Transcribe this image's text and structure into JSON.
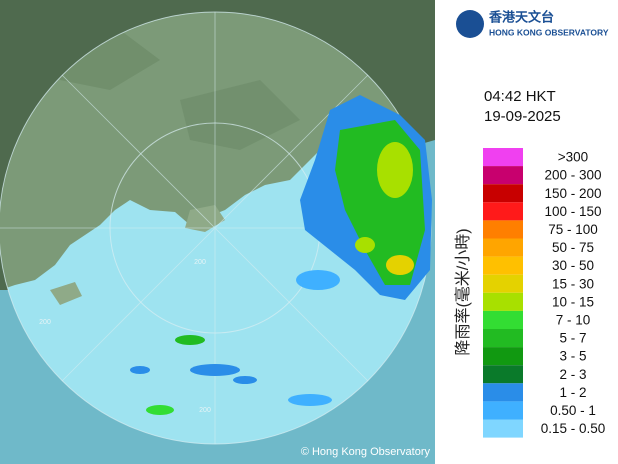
{
  "logo": {
    "chinese": "香港天文台",
    "english": "HONG KONG OBSERVATORY"
  },
  "time": "04:42 HKT",
  "date": "19-09-2025",
  "legend": {
    "title": "降雨率(毫米/小時)",
    "items": [
      {
        "label": ">300",
        "color": "#f040f0"
      },
      {
        "label": "200 - 300",
        "color": "#c8006e"
      },
      {
        "label": "150 - 200",
        "color": "#c80000"
      },
      {
        "label": "100 - 150",
        "color": "#ff1a1a"
      },
      {
        "label": "75 - 100",
        "color": "#ff7f00"
      },
      {
        "label": "50 - 75",
        "color": "#ffa500"
      },
      {
        "label": "30 - 50",
        "color": "#ffc000"
      },
      {
        "label": "15 - 30",
        "color": "#e4d200"
      },
      {
        "label": "10 - 15",
        "color": "#a8e000"
      },
      {
        "label": "7 - 10",
        "color": "#33dd33"
      },
      {
        "label": "5 - 7",
        "color": "#22bb22"
      },
      {
        "label": "3 - 5",
        "color": "#119911"
      },
      {
        "label": "2 - 3",
        "color": "#0a7a2a"
      },
      {
        "label": "1 - 2",
        "color": "#2a8de8"
      },
      {
        "label": "0.50 - 1",
        "color": "#3fb0ff"
      },
      {
        "label": "0.15 - 0.50",
        "color": "#7fd6ff"
      }
    ]
  },
  "ring_labels": [
    "200",
    "200",
    "200"
  ],
  "copyright": "© Hong Kong Observatory"
}
